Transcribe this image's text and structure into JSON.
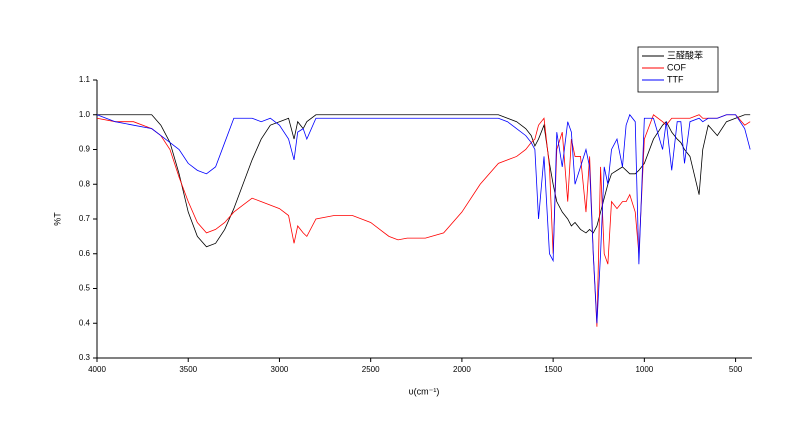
{
  "chart_data": {
    "type": "line",
    "x_label": "υ(cm⁻¹)",
    "y_label": "%T",
    "x": [
      4000,
      3900,
      3800,
      3700,
      3650,
      3600,
      3550,
      3500,
      3450,
      3400,
      3350,
      3300,
      3250,
      3200,
      3150,
      3100,
      3050,
      3000,
      2950,
      2920,
      2900,
      2870,
      2850,
      2800,
      2700,
      2600,
      2500,
      2400,
      2350,
      2300,
      2200,
      2100,
      2000,
      1900,
      1800,
      1750,
      1700,
      1650,
      1620,
      1600,
      1580,
      1550,
      1520,
      1500,
      1480,
      1450,
      1420,
      1400,
      1380,
      1350,
      1320,
      1300,
      1280,
      1260,
      1240,
      1220,
      1200,
      1180,
      1150,
      1120,
      1100,
      1080,
      1050,
      1030,
      1000,
      950,
      900,
      880,
      850,
      820,
      800,
      780,
      750,
      700,
      680,
      650,
      600,
      550,
      500,
      450,
      420
    ],
    "series": [
      {
        "name": "三醛酸苯",
        "color": "#000000",
        "values": [
          1.0,
          1.0,
          1.0,
          1.0,
          0.97,
          0.92,
          0.83,
          0.72,
          0.65,
          0.62,
          0.63,
          0.67,
          0.73,
          0.8,
          0.87,
          0.93,
          0.97,
          0.98,
          0.99,
          0.93,
          0.98,
          0.96,
          0.98,
          1.0,
          1.0,
          1.0,
          1.0,
          1.0,
          1.0,
          1.0,
          1.0,
          1.0,
          1.0,
          1.0,
          1.0,
          0.99,
          0.98,
          0.96,
          0.94,
          0.91,
          0.93,
          0.97,
          0.86,
          0.8,
          0.75,
          0.72,
          0.7,
          0.68,
          0.69,
          0.67,
          0.66,
          0.67,
          0.66,
          0.68,
          0.72,
          0.76,
          0.8,
          0.83,
          0.84,
          0.85,
          0.84,
          0.83,
          0.83,
          0.84,
          0.86,
          0.93,
          0.97,
          0.98,
          0.95,
          0.93,
          0.92,
          0.9,
          0.88,
          0.77,
          0.9,
          0.97,
          0.94,
          0.98,
          0.99,
          1.0,
          1.0
        ]
      },
      {
        "name": "COF",
        "color": "#ff0000",
        "values": [
          0.99,
          0.98,
          0.98,
          0.96,
          0.94,
          0.9,
          0.82,
          0.75,
          0.69,
          0.66,
          0.67,
          0.69,
          0.72,
          0.74,
          0.76,
          0.75,
          0.74,
          0.73,
          0.71,
          0.63,
          0.68,
          0.66,
          0.65,
          0.7,
          0.71,
          0.71,
          0.69,
          0.65,
          0.64,
          0.645,
          0.645,
          0.66,
          0.72,
          0.8,
          0.86,
          0.87,
          0.88,
          0.9,
          0.92,
          0.93,
          0.97,
          0.99,
          0.85,
          0.6,
          0.9,
          0.95,
          0.75,
          0.93,
          0.88,
          0.88,
          0.72,
          0.88,
          0.6,
          0.39,
          0.85,
          0.6,
          0.57,
          0.75,
          0.73,
          0.75,
          0.75,
          0.77,
          0.72,
          0.6,
          0.93,
          1.0,
          0.98,
          0.97,
          0.99,
          0.99,
          0.99,
          0.99,
          0.99,
          1.0,
          0.99,
          0.99,
          0.99,
          1.0,
          1.0,
          0.97,
          0.98
        ]
      },
      {
        "name": "TTF",
        "color": "#0000ff",
        "values": [
          1.0,
          0.98,
          0.97,
          0.96,
          0.94,
          0.92,
          0.9,
          0.86,
          0.84,
          0.83,
          0.85,
          0.92,
          0.99,
          0.99,
          0.99,
          0.98,
          0.99,
          0.97,
          0.93,
          0.87,
          0.95,
          0.96,
          0.93,
          0.99,
          0.99,
          0.99,
          0.99,
          0.99,
          0.99,
          0.99,
          0.99,
          0.99,
          0.99,
          0.99,
          0.99,
          0.98,
          0.96,
          0.94,
          0.92,
          0.9,
          0.7,
          0.88,
          0.6,
          0.58,
          0.95,
          0.85,
          0.98,
          0.95,
          0.8,
          0.85,
          0.9,
          0.85,
          0.6,
          0.4,
          0.6,
          0.85,
          0.8,
          0.9,
          0.93,
          0.85,
          0.97,
          1.0,
          0.98,
          0.57,
          0.99,
          0.99,
          0.9,
          0.98,
          0.84,
          0.98,
          0.98,
          0.86,
          0.98,
          0.99,
          0.98,
          0.99,
          0.99,
          1.0,
          1.0,
          0.96,
          0.9
        ]
      }
    ],
    "xlim": [
      4000,
      410
    ],
    "xticks": [
      4000,
      3500,
      3000,
      2500,
      2000,
      1500,
      1000,
      500
    ],
    "ylim": [
      0.3,
      1.1
    ],
    "yticks": [
      0.3,
      0.4,
      0.5,
      0.6,
      0.7,
      0.8,
      0.9,
      {
        "value": 1,
        "label": "1.0"
      },
      1.1
    ],
    "legend": "upper right"
  }
}
